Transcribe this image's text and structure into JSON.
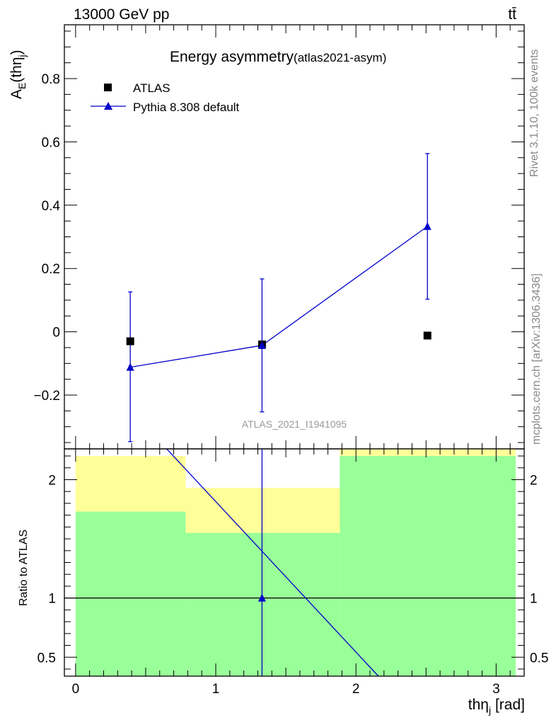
{
  "header": {
    "left": "13000 GeV pp",
    "right": "tt̄"
  },
  "side_text": {
    "top": "Rivet 3.1.10,  100k events",
    "bottom": "mcplots.cern.ch [arXiv:1306.3436]"
  },
  "watermark": "ATLAS_2021_I1941095",
  "chart_data": [
    {
      "type": "scatter",
      "title": "Energy asymmetry",
      "title_suffix": "(atlas2021-asym)",
      "ylabel": "A_E(thη_j)",
      "ylabel_main": "A",
      "ylabel_sub": "E",
      "ylabel_paren_open": "(thη",
      "ylabel_paren_sub": "j",
      "ylabel_paren_close": ")",
      "xlim": [
        -0.08,
        3.2
      ],
      "ylim": [
        -0.37,
        0.97
      ],
      "yticks": [
        -0.2,
        0,
        0.2,
        0.4,
        0.6,
        0.8
      ],
      "ytick_labels": [
        "−0.2",
        "0",
        "0.2",
        "0.4",
        "0.6",
        "0.8"
      ],
      "legend_position": "top-left",
      "series": [
        {
          "name": "ATLAS",
          "marker": "square",
          "color": "#000000",
          "x": [
            0.39,
            1.33,
            2.51
          ],
          "y": [
            -0.03,
            -0.04,
            -0.012
          ]
        },
        {
          "name": "Pythia 8.308 default",
          "marker": "triangle",
          "color": "#0000cc",
          "x": [
            0.39,
            1.33,
            2.51
          ],
          "y": [
            -0.112,
            -0.043,
            0.333
          ],
          "yerr_low": [
            0.235,
            0.21,
            0.23
          ],
          "yerr_high": [
            0.238,
            0.21,
            0.23
          ]
        }
      ]
    },
    {
      "type": "bar",
      "ylabel": "Ratio to ATLAS",
      "xlabel": "thη_j [rad]",
      "xlabel_main": "thη",
      "xlabel_sub": "j",
      "xlabel_unit": "[rad]",
      "xlim": [
        -0.08,
        3.2
      ],
      "ylim": [
        0.34,
        2.26
      ],
      "xticks": [
        0,
        1,
        2,
        3
      ],
      "xtick_labels": [
        "0",
        "1",
        "2",
        "3"
      ],
      "yticks": [
        0.5,
        1,
        2
      ],
      "ytick_labels": [
        "0.5",
        "1",
        "2"
      ],
      "bins": [
        {
          "x0": 0.0,
          "x1": 0.785,
          "yellow": [
            0.34,
            2.2
          ],
          "green": [
            0.34,
            1.73
          ]
        },
        {
          "x0": 0.785,
          "x1": 1.885,
          "yellow": [
            0.54,
            1.93
          ],
          "green": [
            0.34,
            1.55
          ]
        },
        {
          "x0": 1.885,
          "x1": 3.14,
          "yellow": [
            0.34,
            2.26
          ],
          "green": [
            0.34,
            2.2
          ]
        }
      ],
      "reference_line": 1,
      "mc_line": [
        [
          0.65,
          2.26
        ],
        [
          2.16,
          0.34
        ]
      ],
      "mc_point": {
        "x": 1.33,
        "y": 1.0
      }
    }
  ]
}
